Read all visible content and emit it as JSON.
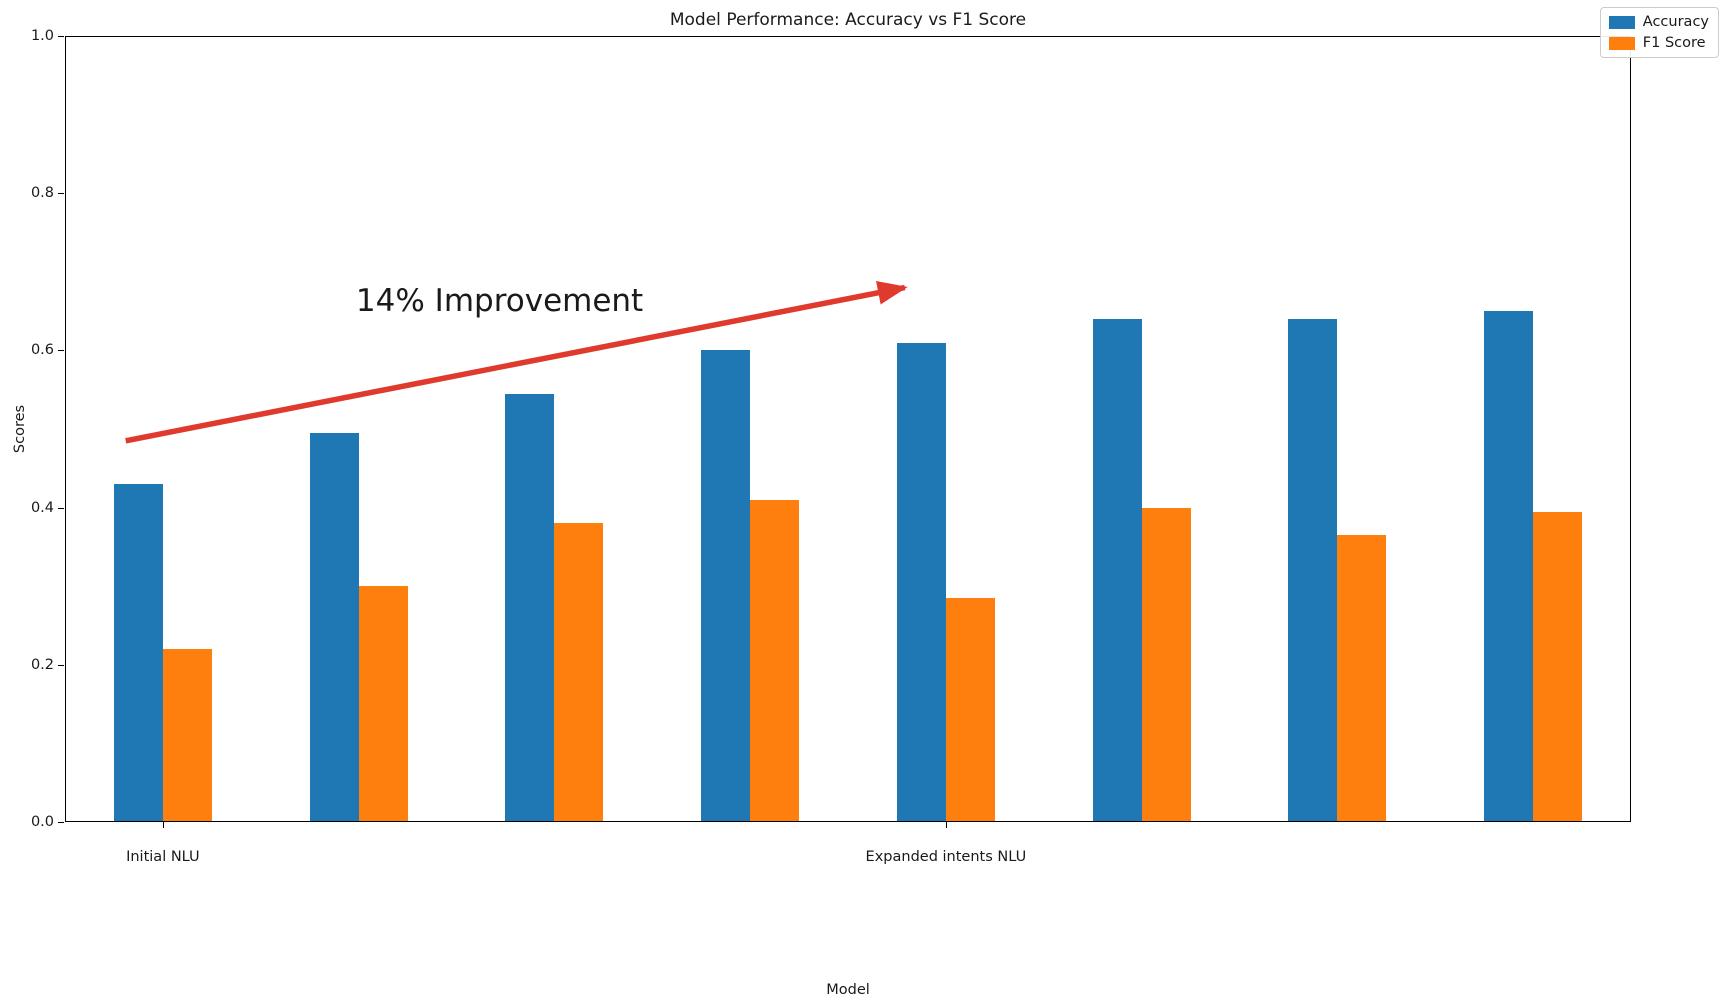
{
  "chart_data": {
    "type": "bar",
    "title": "Model Performance: Accuracy vs F1 Score",
    "xlabel": "Model",
    "ylabel": "Scores",
    "ylim": [
      0.0,
      1.0
    ],
    "yticks": [
      0.0,
      0.2,
      0.4,
      0.6,
      0.8,
      1.0
    ],
    "xlim": [
      -0.5,
      7.5
    ],
    "n_groups": 8,
    "bar_width": 0.25,
    "grid": false,
    "legend_position": "upper right",
    "xtick_labels": [
      {
        "index": 0,
        "label": "Initial NLU"
      },
      {
        "index": 4,
        "label": "Expanded intents NLU"
      }
    ],
    "series": [
      {
        "name": "Accuracy",
        "color": "#1f77b4",
        "values": [
          0.43,
          0.495,
          0.545,
          0.6,
          0.61,
          0.64,
          0.64,
          0.65
        ]
      },
      {
        "name": "F1 Score",
        "color": "#ff7f0e",
        "values": [
          0.22,
          0.3,
          0.38,
          0.41,
          0.285,
          0.4,
          0.365,
          0.395
        ]
      }
    ],
    "annotation": {
      "text": "14% Improvement",
      "text_color": "#1a1a1a",
      "text_center_data": [
        1.72,
        0.663
      ],
      "arrow": {
        "color": "#e0392d",
        "start_data": [
          -0.19,
          0.485
        ],
        "end_data": [
          3.79,
          0.68
        ]
      }
    }
  }
}
